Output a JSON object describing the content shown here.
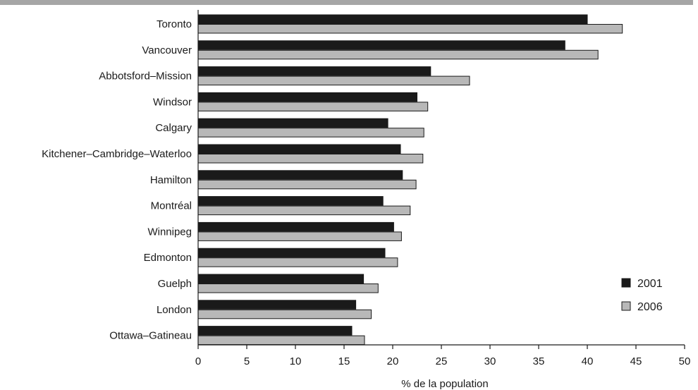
{
  "chart_data": {
    "type": "bar",
    "orientation": "horizontal",
    "categories": [
      "Toronto",
      "Vancouver",
      "Abbotsford–Mission",
      "Windsor",
      "Calgary",
      "Kitchener–Cambridge–Waterloo",
      "Hamilton",
      "Montréal",
      "Winnipeg",
      "Edmonton",
      "Guelph",
      "London",
      "Ottawa–Gatineau"
    ],
    "series": [
      {
        "name": "2001",
        "color": "#1a1a1a",
        "values": [
          40.0,
          37.7,
          23.9,
          22.5,
          19.5,
          20.8,
          21.0,
          19.0,
          20.1,
          19.2,
          17.0,
          16.2,
          15.8
        ]
      },
      {
        "name": "2006",
        "color": "#b8b8b8",
        "values": [
          43.6,
          41.1,
          27.9,
          23.6,
          23.2,
          23.1,
          22.4,
          21.8,
          20.9,
          20.5,
          18.5,
          17.8,
          17.1
        ]
      }
    ],
    "xlabel": "% de la population",
    "ylabel": "",
    "xlim": [
      0,
      50
    ],
    "xticks": [
      0,
      5,
      10,
      15,
      20,
      25,
      30,
      35,
      40,
      45,
      50
    ],
    "grid": false,
    "legend": {
      "placement": "bottom-right"
    },
    "top_rule_color": "#a6a6a6"
  }
}
